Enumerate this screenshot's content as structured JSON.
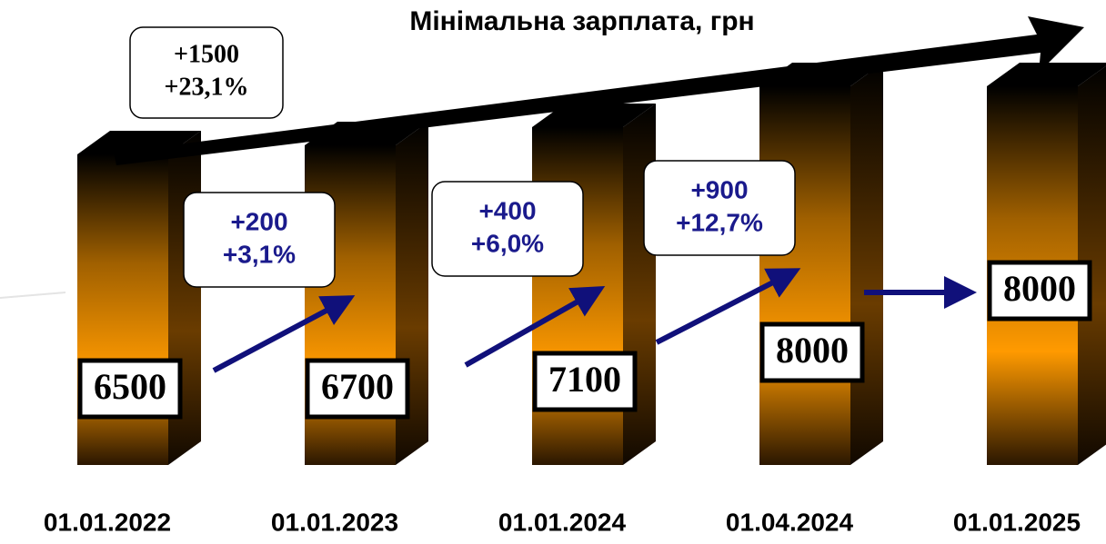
{
  "chart_data": {
    "type": "bar3d",
    "title": "Мінімальна зарплата, грн",
    "categories": [
      "01.01.2022",
      "01.01.2023",
      "01.01.2024",
      "01.04.2024",
      "01.01.2025"
    ],
    "values": [
      6500,
      6700,
      7100,
      8000,
      8000
    ],
    "color": "#ff9900",
    "total_change": [
      "+1500",
      "+23,1%"
    ],
    "changes": [
      [
        "+200",
        "+3,1%"
      ],
      [
        "+400",
        "+6,0%"
      ],
      [
        "+900",
        "+12,7%"
      ]
    ]
  }
}
